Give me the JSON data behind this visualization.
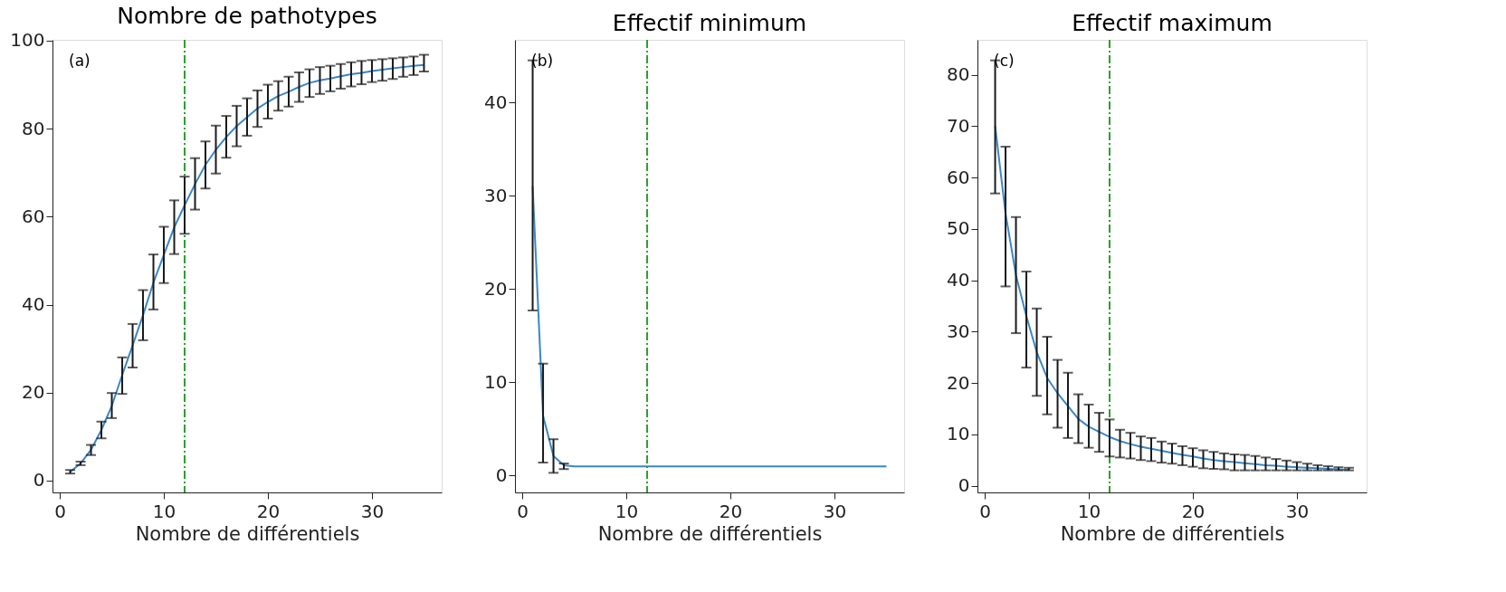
{
  "chart_data": [
    {
      "type": "line",
      "title": "Nombre de pathotypes",
      "xlabel": "Nombre de différentiels",
      "annotations": [
        "(a)"
      ],
      "color": "#3a87c8",
      "marker": "none",
      "line_style": "solid",
      "grid": false,
      "x": [
        1,
        2,
        3,
        4,
        5,
        6,
        7,
        8,
        9,
        10,
        11,
        12,
        13,
        14,
        15,
        16,
        17,
        18,
        19,
        20,
        21,
        22,
        23,
        24,
        25,
        26,
        27,
        28,
        29,
        30,
        31,
        32,
        33,
        34,
        35
      ],
      "values": [
        2,
        3.9,
        7,
        11.5,
        17,
        24,
        30.7,
        37.6,
        45,
        51.3,
        57.6,
        62.6,
        67.4,
        71.8,
        75.2,
        78.1,
        80.6,
        82.6,
        84.6,
        86.1,
        87.4,
        88.4,
        89.5,
        90.4,
        91,
        91.4,
        91.9,
        92.4,
        92.7,
        93.1,
        93.4,
        93.7,
        94,
        94.3,
        94.5
      ],
      "errors": [
        [
          1.6,
          2.4
        ],
        [
          3.5,
          4.3
        ],
        [
          5.8,
          8.1
        ],
        [
          9.6,
          13.4
        ],
        [
          14.2,
          19.9
        ],
        [
          19.7,
          28
        ],
        [
          25.7,
          35.6
        ],
        [
          31.9,
          43.3
        ],
        [
          38.9,
          51.4
        ],
        [
          44.9,
          57.7
        ],
        [
          51.5,
          63.7
        ],
        [
          56.1,
          69.1
        ],
        [
          61.6,
          73.3
        ],
        [
          66.4,
          77.1
        ],
        [
          69.8,
          80.7
        ],
        [
          73.4,
          82.9
        ],
        [
          76,
          85.2
        ],
        [
          78.4,
          86.9
        ],
        [
          80.4,
          88.7
        ],
        [
          82.3,
          90
        ],
        [
          84.1,
          90.8
        ],
        [
          85,
          91.8
        ],
        [
          86.1,
          92.8
        ],
        [
          87.2,
          93.5
        ],
        [
          87.9,
          94
        ],
        [
          88.5,
          94.3
        ],
        [
          89.1,
          94.7
        ],
        [
          89.6,
          95.1
        ],
        [
          90.1,
          95.4
        ],
        [
          90.6,
          95.6
        ],
        [
          90.9,
          95.8
        ],
        [
          91.3,
          96
        ],
        [
          91.8,
          96.2
        ],
        [
          92.2,
          96.4
        ],
        [
          93,
          96.8
        ]
      ],
      "xlim": [
        -0.7,
        36.7
      ],
      "xticks": [
        0,
        10,
        20,
        30
      ],
      "ylim": [
        -2.7,
        100.2
      ],
      "yticks": [
        0,
        20,
        40,
        60,
        80,
        100
      ],
      "ref_lines": [
        {
          "axis": "x",
          "value": 12,
          "color": "#2ca02c",
          "line_style": "dashdot"
        }
      ]
    },
    {
      "type": "line",
      "title": "Effectif minimum",
      "xlabel": "Nombre de différentiels",
      "annotations": [
        "(b)"
      ],
      "color": "#3a87c8",
      "marker": "none",
      "line_style": "solid",
      "grid": false,
      "x": [
        1,
        2,
        3,
        4,
        5,
        6,
        7,
        8,
        9,
        10,
        11,
        12,
        13,
        14,
        15,
        16,
        17,
        18,
        19,
        20,
        21,
        22,
        23,
        24,
        25,
        26,
        27,
        28,
        29,
        30,
        31,
        32,
        33,
        34,
        35
      ],
      "values": [
        31,
        6.4,
        2.1,
        1.1,
        1,
        1,
        1,
        1,
        1,
        1,
        1,
        1,
        1,
        1,
        1,
        1,
        1,
        1,
        1,
        1,
        1,
        1,
        1,
        1,
        1,
        1,
        1,
        1,
        1,
        1,
        1,
        1,
        1,
        1,
        1
      ],
      "errors": [
        [
          17.7,
          44.5
        ],
        [
          1.4,
          12
        ],
        [
          0.3,
          3.9
        ],
        [
          0.7,
          1.3
        ],
        null,
        null,
        null,
        null,
        null,
        null,
        null,
        null,
        null,
        null,
        null,
        null,
        null,
        null,
        null,
        null,
        null,
        null,
        null,
        null,
        null,
        null,
        null,
        null,
        null,
        null,
        null,
        null,
        null,
        null,
        null
      ],
      "xlim": [
        -0.7,
        36.7
      ],
      "xticks": [
        0,
        10,
        20,
        30
      ],
      "ylim": [
        -1.8,
        46.7
      ],
      "yticks": [
        0,
        10,
        20,
        30,
        40
      ],
      "ref_lines": [
        {
          "axis": "x",
          "value": 12,
          "color": "#2ca02c",
          "line_style": "dashdot"
        }
      ]
    },
    {
      "type": "line",
      "title": "Effectif maximum",
      "xlabel": "Nombre de différentiels",
      "annotations": [
        "(c)"
      ],
      "color": "#3a87c8",
      "marker": "none",
      "line_style": "solid",
      "grid": false,
      "x": [
        1,
        2,
        3,
        4,
        5,
        6,
        7,
        8,
        9,
        10,
        11,
        12,
        13,
        14,
        15,
        16,
        17,
        18,
        19,
        20,
        21,
        22,
        23,
        24,
        25,
        26,
        27,
        28,
        29,
        30,
        31,
        32,
        33,
        34,
        35
      ],
      "values": [
        70,
        53,
        41,
        33,
        26,
        21,
        18,
        15.5,
        13,
        11.5,
        10.5,
        9.5,
        8.7,
        8.1,
        7.6,
        7.2,
        6.8,
        6.4,
        6,
        5.7,
        5.3,
        5,
        4.8,
        4.6,
        4.4,
        4.2,
        4,
        3.9,
        3.7,
        3.6,
        3.5,
        3.4,
        3.3,
        3.2,
        3.1
      ],
      "errors": [
        [
          56.9,
          82.8
        ],
        [
          38.8,
          66
        ],
        [
          29.7,
          52.3
        ],
        [
          23,
          41.7
        ],
        [
          17.5,
          34.5
        ],
        [
          13.9,
          29
        ],
        [
          11.3,
          24.5
        ],
        [
          9.3,
          22
        ],
        [
          8.3,
          17.8
        ],
        [
          7.4,
          15.8
        ],
        [
          6.6,
          14.2
        ],
        [
          5.7,
          12.9
        ],
        [
          5.5,
          10.9
        ],
        [
          5.3,
          10.3
        ],
        [
          5,
          9.6
        ],
        [
          4.8,
          9.3
        ],
        [
          4.5,
          8.6
        ],
        [
          4.3,
          8.2
        ],
        [
          4,
          7.7
        ],
        [
          3.7,
          7.3
        ],
        [
          3.4,
          6.9
        ],
        [
          3.3,
          6.6
        ],
        [
          3.2,
          6.3
        ],
        [
          3,
          6.1
        ],
        [
          3,
          6
        ],
        [
          3,
          5.8
        ],
        [
          3,
          5.5
        ],
        [
          3,
          5.2
        ],
        [
          3,
          4.9
        ],
        [
          3,
          4.6
        ],
        [
          3,
          4.3
        ],
        [
          3,
          4
        ],
        [
          3,
          3.8
        ],
        [
          3,
          3.6
        ],
        [
          3,
          3.5
        ]
      ],
      "xlim": [
        -0.7,
        36.7
      ],
      "xticks": [
        0,
        10,
        20,
        30
      ],
      "ylim": [
        -1.3,
        86.8
      ],
      "yticks": [
        0,
        10,
        20,
        30,
        40,
        50,
        60,
        70,
        80
      ],
      "ref_lines": [
        {
          "axis": "x",
          "value": 12,
          "color": "#2ca02c",
          "line_style": "dashdot"
        }
      ]
    }
  ]
}
